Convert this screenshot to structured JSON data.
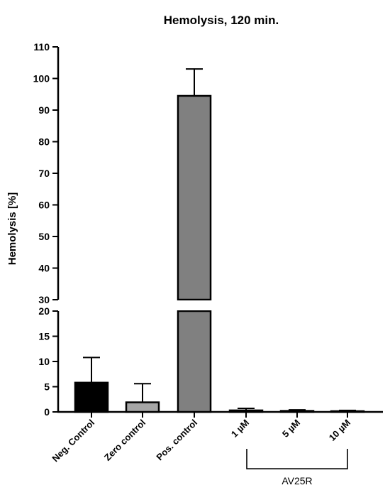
{
  "chart_data": {
    "type": "bar",
    "title": "Hemolysis, 120 min.",
    "ylabel": "Hemolysis [%]",
    "xlabel": "",
    "categories": [
      "Neg. Control",
      "Zero control",
      "Pos. control",
      "1 µM",
      "5 µM",
      "10 µM"
    ],
    "values": [
      5.8,
      1.9,
      94.5,
      0.3,
      0.2,
      0.15
    ],
    "errors": [
      5.0,
      3.7,
      8.5,
      0.4,
      0.2,
      0.15
    ],
    "bar_colors": [
      "#000000",
      "#a6a6a6",
      "#808080",
      "#808080",
      "#808080",
      "#808080"
    ],
    "axis_break": [
      20,
      30
    ],
    "lower_segment": {
      "ylim": [
        0,
        20
      ],
      "ticks": [
        "0",
        "5",
        "10",
        "15",
        "20"
      ]
    },
    "upper_segment": {
      "ylim": [
        30,
        110
      ],
      "ticks": [
        "30",
        "40",
        "50",
        "60",
        "70",
        "80",
        "90",
        "100",
        "110"
      ]
    },
    "group_bracket": {
      "label": "AV25R",
      "categories": [
        "1 µM",
        "5 µM",
        "10 µM"
      ]
    },
    "grid": false,
    "legend": "none"
  }
}
